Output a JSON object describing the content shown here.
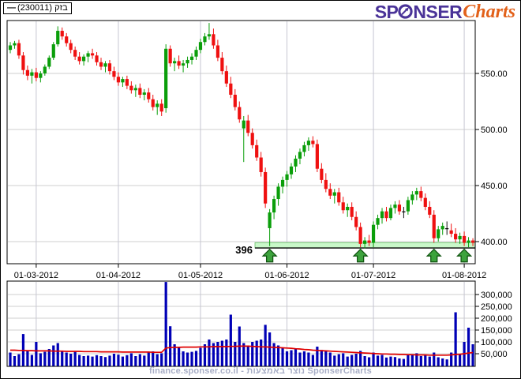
{
  "legend": {
    "symbol": "—",
    "label": "(230011) בזק"
  },
  "logo": {
    "part1": "SP",
    "part2": "NSER",
    "part3": "Charts",
    "icon": "trend-arrow-circle",
    "color_main": "#4a3398",
    "color_accent": "#e2611a"
  },
  "footer": {
    "text": "finance.sponser.co.il - נוצר באמצעות SponserCharts"
  },
  "chart_data": [
    {
      "type": "candlestick",
      "name": "price",
      "title": "",
      "x_tick_labels": [
        "01-03-2012",
        "01-04-2012",
        "01-05-2012",
        "01-06-2012",
        "01-07-2012",
        "01-08-2012"
      ],
      "x_tick_candle_index": [
        6,
        25,
        44,
        64,
        84,
        105
      ],
      "y_tick_labels": [
        "550.00",
        "500.00",
        "450.00",
        "400.00"
      ],
      "y_tick_values": [
        550,
        500,
        450,
        400
      ],
      "ylim": [
        380,
        597
      ],
      "grid": true,
      "colors": {
        "up": "#0a9e0a",
        "down": "#ef1010",
        "neutral": "#111111",
        "grid_h": "#cfcfcf",
        "grid_v": "#c6c6d2"
      },
      "support": {
        "label": "396",
        "value": 396,
        "arrow_candle_index": [
          60,
          81,
          98,
          105
        ],
        "band_color": "#c9f8c9",
        "band_edge_color": "#6abf6a",
        "line_color": "#000000",
        "label_color": "#1c6b1c",
        "arrow_fill": "#3da33d",
        "arrow_stroke": "#115511"
      },
      "candles_columns": [
        "open",
        "high",
        "low",
        "close",
        "volume_thousands"
      ],
      "candles": [
        [
          571,
          578,
          568,
          575,
          55
        ],
        [
          575,
          579,
          572,
          577,
          40
        ],
        [
          577,
          580,
          563,
          566,
          48
        ],
        [
          566,
          569,
          549,
          553,
          133
        ],
        [
          553,
          557,
          544,
          548,
          62
        ],
        [
          548,
          554,
          541,
          551,
          45
        ],
        [
          551,
          555,
          543,
          546,
          100
        ],
        [
          546,
          552,
          542,
          550,
          52
        ],
        [
          550,
          558,
          548,
          556,
          58
        ],
        [
          556,
          566,
          554,
          564,
          70
        ],
        [
          564,
          578,
          562,
          576,
          85
        ],
        [
          576,
          592,
          574,
          588,
          95
        ],
        [
          588,
          591,
          580,
          583,
          60
        ],
        [
          583,
          586,
          574,
          577,
          55
        ],
        [
          577,
          580,
          568,
          571,
          50
        ],
        [
          571,
          574,
          562,
          565,
          58
        ],
        [
          565,
          569,
          558,
          561,
          45
        ],
        [
          561,
          567,
          557,
          565,
          40
        ],
        [
          565,
          570,
          560,
          568,
          42
        ],
        [
          568,
          572,
          563,
          566,
          38
        ],
        [
          566,
          569,
          557,
          560,
          44
        ],
        [
          560,
          564,
          553,
          556,
          40
        ],
        [
          556,
          561,
          551,
          559,
          36
        ],
        [
          559,
          562,
          549,
          552,
          42
        ],
        [
          552,
          556,
          544,
          547,
          50
        ],
        [
          547,
          551,
          539,
          542,
          46
        ],
        [
          542,
          547,
          538,
          545,
          38
        ],
        [
          545,
          548,
          536,
          539,
          44
        ],
        [
          539,
          543,
          532,
          535,
          52
        ],
        [
          535,
          540,
          529,
          537,
          40
        ],
        [
          537,
          541,
          528,
          531,
          48
        ],
        [
          531,
          536,
          526,
          533,
          42
        ],
        [
          533,
          537,
          524,
          527,
          55
        ],
        [
          527,
          531,
          517,
          520,
          60
        ],
        [
          520,
          526,
          513,
          523,
          48
        ],
        [
          523,
          527,
          512,
          516,
          52
        ],
        [
          519,
          576,
          515,
          572,
          353
        ],
        [
          572,
          575,
          556,
          559,
          166
        ],
        [
          559,
          564,
          552,
          561,
          90
        ],
        [
          561,
          566,
          554,
          557,
          75
        ],
        [
          557,
          562,
          551,
          559,
          60
        ],
        [
          559,
          565,
          555,
          562,
          55
        ],
        [
          562,
          568,
          558,
          565,
          58
        ],
        [
          565,
          574,
          562,
          571,
          62
        ],
        [
          571,
          581,
          568,
          578,
          75
        ],
        [
          578,
          586,
          575,
          583,
          90
        ],
        [
          583,
          595,
          580,
          585,
          110
        ],
        [
          585,
          590,
          572,
          575,
          95
        ],
        [
          575,
          580,
          561,
          564,
          100
        ],
        [
          564,
          569,
          549,
          552,
          105
        ],
        [
          552,
          557,
          538,
          541,
          110
        ],
        [
          541,
          547,
          528,
          531,
          215
        ],
        [
          531,
          536,
          517,
          520,
          100
        ],
        [
          520,
          525,
          506,
          509,
          165
        ],
        [
          501,
          512,
          471,
          508,
          95
        ],
        [
          508,
          513,
          494,
          497,
          85
        ],
        [
          497,
          501,
          483,
          486,
          100
        ],
        [
          486,
          491,
          472,
          475,
          105
        ],
        [
          475,
          480,
          458,
          462,
          110
        ],
        [
          462,
          466,
          430,
          434,
          172
        ],
        [
          412,
          429,
          396,
          426,
          140
        ],
        [
          426,
          441,
          420,
          438,
          95
        ],
        [
          438,
          452,
          432,
          449,
          85
        ],
        [
          449,
          458,
          443,
          455,
          75
        ],
        [
          455,
          463,
          449,
          460,
          60
        ],
        [
          460,
          470,
          456,
          467,
          65
        ],
        [
          467,
          477,
          462,
          474,
          70
        ],
        [
          474,
          483,
          469,
          480,
          55
        ],
        [
          480,
          489,
          476,
          486,
          60
        ],
        [
          486,
          493,
          481,
          490,
          55
        ],
        [
          490,
          494,
          484,
          487,
          45
        ],
        [
          487,
          491,
          462,
          465,
          80
        ],
        [
          465,
          470,
          452,
          455,
          66
        ],
        [
          455,
          461,
          444,
          447,
          60
        ],
        [
          447,
          452,
          438,
          441,
          55
        ],
        [
          441,
          447,
          434,
          444,
          42
        ],
        [
          444,
          448,
          432,
          435,
          48
        ],
        [
          435,
          440,
          425,
          428,
          52
        ],
        [
          428,
          434,
          422,
          431,
          38
        ],
        [
          431,
          435,
          419,
          422,
          45
        ],
        [
          422,
          427,
          410,
          413,
          50
        ],
        [
          413,
          417,
          395,
          398,
          62
        ],
        [
          398,
          404,
          394,
          401,
          40
        ],
        [
          401,
          406,
          396,
          399,
          35
        ],
        [
          399,
          418,
          395,
          415,
          55
        ],
        [
          415,
          424,
          411,
          421,
          42
        ],
        [
          421,
          430,
          416,
          427,
          45
        ],
        [
          427,
          431,
          418,
          421,
          34
        ],
        [
          421,
          433,
          419,
          430,
          38
        ],
        [
          430,
          436,
          425,
          433,
          36
        ],
        [
          433,
          437,
          424,
          427,
          30
        ],
        [
          427,
          431,
          421,
          427,
          28
        ],
        [
          427,
          440,
          424,
          437,
          48
        ],
        [
          437,
          445,
          433,
          442,
          44
        ],
        [
          442,
          448,
          437,
          445,
          52
        ],
        [
          445,
          449,
          436,
          439,
          40
        ],
        [
          439,
          443,
          428,
          431,
          45
        ],
        [
          431,
          436,
          421,
          424,
          38
        ],
        [
          424,
          428,
          399,
          403,
          55
        ],
        [
          403,
          414,
          400,
          411,
          35
        ],
        [
          411,
          417,
          406,
          414,
          30
        ],
        [
          412,
          418,
          406,
          412,
          26
        ],
        [
          410,
          416,
          404,
          407,
          55
        ],
        [
          407,
          412,
          399,
          402,
          225
        ],
        [
          402,
          408,
          398,
          405,
          48
        ],
        [
          405,
          409,
          396,
          399,
          100
        ],
        [
          399,
          404,
          395,
          401,
          160
        ],
        [
          401,
          403,
          396,
          399,
          90
        ]
      ]
    },
    {
      "type": "bar",
      "name": "volume",
      "source": "price.candles column volume_thousands",
      "unit": "thousands",
      "y_tick_labels": [
        "300,000",
        "250,000",
        "200,000",
        "150,000",
        "100,000",
        "50,000"
      ],
      "y_tick_values": [
        300,
        250,
        200,
        150,
        100,
        50
      ],
      "bar_color": "#0000b6",
      "ma_color": "#e00000",
      "ma_thousands": [
        65,
        65,
        64,
        64,
        63,
        63,
        62,
        62,
        62,
        62,
        61,
        61,
        61,
        60,
        60,
        60,
        60,
        59,
        59,
        59,
        59,
        58,
        58,
        58,
        58,
        58,
        57,
        57,
        57,
        57,
        57,
        57,
        57,
        56,
        56,
        56,
        74,
        76,
        77,
        77,
        78,
        78,
        78,
        78,
        79,
        79,
        79,
        80,
        80,
        80,
        80,
        81,
        81,
        82,
        82,
        82,
        81,
        80,
        79,
        79,
        78,
        77,
        76,
        75,
        74,
        73,
        71,
        70,
        68,
        67,
        65,
        64,
        63,
        62,
        61,
        60,
        59,
        58,
        57,
        56,
        55,
        54,
        53,
        52,
        51,
        50,
        49,
        49,
        48,
        48,
        47,
        47,
        46,
        46,
        45,
        45,
        45,
        44,
        44,
        44,
        44,
        44,
        45,
        47,
        48,
        50,
        53,
        55
      ]
    }
  ]
}
